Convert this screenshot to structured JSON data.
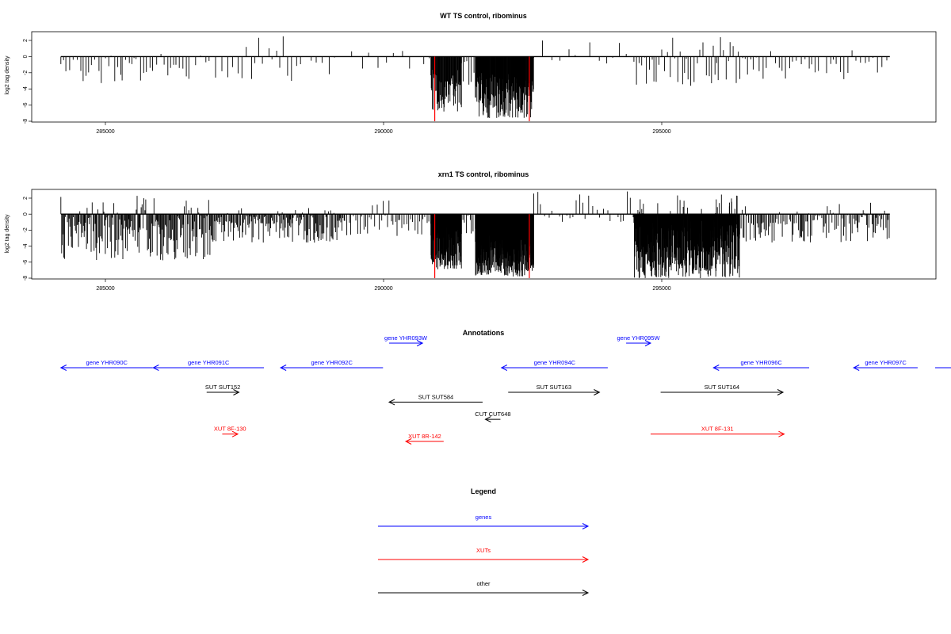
{
  "chart_data": [
    {
      "type": "bar",
      "title": "WT TS control, ribominus",
      "xlabel": "",
      "ylabel": "log2 tag density",
      "xlim": [
        283800,
        297800
      ],
      "ylim": [
        -8.5,
        3.2
      ],
      "xticks": [
        "285000",
        "290000",
        "295000"
      ],
      "yticks": [
        "2",
        "0",
        "-2",
        "-4",
        "-6",
        "-8"
      ],
      "baseline": 0,
      "x_range": [
        284200,
        299100
      ],
      "markers": [
        {
          "x": 290920,
          "value": -8,
          "color": "#ff0000"
        },
        {
          "x": 292620,
          "value": -8,
          "color": "#ff0000"
        }
      ],
      "series": [
        {
          "segments": [
            {
              "from": 284200,
              "to": 285300,
              "step": 55,
              "min": -3.3,
              "max": 0,
              "pos_prob": 0.05,
              "pos_max": 0.5
            },
            {
              "from": 285300,
              "to": 286500,
              "step": 60,
              "min": -3.0,
              "max": 0,
              "pos_prob": 0.08,
              "pos_max": 1.0
            },
            {
              "from": 286500,
              "to": 288700,
              "step": 90,
              "min": -3.2,
              "max": 0,
              "pos_prob": 0.2,
              "pos_max": 2.8
            },
            {
              "from": 288700,
              "to": 290850,
              "step": 140,
              "min": -2.2,
              "max": 0,
              "pos_prob": 0.3,
              "pos_max": 1.4
            },
            {
              "from": 290850,
              "to": 291400,
              "step": 8,
              "min": -6.8,
              "max": -1.5,
              "pos_prob": 0,
              "pos_max": 0
            },
            {
              "from": 291400,
              "to": 291650,
              "step": 40,
              "min": -3.5,
              "max": 0,
              "pos_prob": 0,
              "pos_max": 0
            },
            {
              "from": 291650,
              "to": 292700,
              "step": 6,
              "min": -7.6,
              "max": -2.0,
              "pos_prob": 0,
              "pos_max": 0
            },
            {
              "from": 292700,
              "to": 294500,
              "step": 150,
              "min": -1.2,
              "max": 0,
              "pos_prob": 0.35,
              "pos_max": 2.5
            },
            {
              "from": 294500,
              "to": 296500,
              "step": 45,
              "min": -4.2,
              "max": 0,
              "pos_prob": 0.12,
              "pos_max": 2.6
            },
            {
              "from": 296500,
              "to": 299100,
              "step": 65,
              "min": -2.8,
              "max": 0,
              "pos_prob": 0.1,
              "pos_max": 2.8
            }
          ]
        }
      ]
    },
    {
      "type": "bar",
      "title": "xrn1 TS control, ribominus",
      "xlabel": "",
      "ylabel": "log2 tag density",
      "xlim": [
        283800,
        297800
      ],
      "ylim": [
        -8.5,
        3.2
      ],
      "xticks": [
        "285000",
        "290000",
        "295000"
      ],
      "yticks": [
        "2",
        "0",
        "-2",
        "-4",
        "-6",
        "-8"
      ],
      "baseline": 0,
      "x_range": [
        284200,
        299100
      ],
      "markers": [
        {
          "x": 290920,
          "value": -8,
          "color": "#ff0000"
        },
        {
          "x": 292620,
          "value": -8,
          "color": "#ff0000"
        }
      ],
      "series": [
        {
          "segments": [
            {
              "from": 284200,
              "to": 286900,
              "step": 14,
              "min": -5.8,
              "max": 0,
              "pos_prob": 0.1,
              "pos_max": 2.6
            },
            {
              "from": 286900,
              "to": 289300,
              "step": 16,
              "min": -3.6,
              "max": 0,
              "pos_prob": 0.08,
              "pos_max": 0.8
            },
            {
              "from": 289300,
              "to": 290850,
              "step": 35,
              "min": -2.8,
              "max": 0,
              "pos_prob": 0.12,
              "pos_max": 2.0
            },
            {
              "from": 290850,
              "to": 291400,
              "step": 4,
              "min": -7.0,
              "max": -1.5,
              "pos_prob": 0,
              "pos_max": 0
            },
            {
              "from": 291400,
              "to": 291650,
              "step": 30,
              "min": -2.5,
              "max": 0,
              "pos_prob": 0,
              "pos_max": 0
            },
            {
              "from": 291650,
              "to": 292700,
              "step": 3,
              "min": -7.8,
              "max": -2.0,
              "pos_prob": 0,
              "pos_max": 0
            },
            {
              "from": 292700,
              "to": 294500,
              "step": 60,
              "min": -1.0,
              "max": 0,
              "pos_prob": 0.45,
              "pos_max": 2.9
            },
            {
              "from": 294500,
              "to": 296400,
              "step": 4,
              "min": -8.0,
              "max": -0.5,
              "pos_prob": 0.05,
              "pos_max": 2.5
            },
            {
              "from": 296400,
              "to": 299100,
              "step": 22,
              "min": -3.6,
              "max": 0,
              "pos_prob": 0.1,
              "pos_max": 1.6
            }
          ]
        }
      ]
    }
  ],
  "annotations": {
    "title": "Annotations",
    "items": [
      {
        "label": "gene YHR090C",
        "color": "#0000ff",
        "dir": "left",
        "x1": 284200,
        "x2": 285850,
        "row": 0
      },
      {
        "label": "gene YHR091C",
        "color": "#0000ff",
        "dir": "left",
        "x1": 285860,
        "x2": 287850,
        "row": 0
      },
      {
        "label": "gene YHR092C",
        "color": "#0000ff",
        "dir": "left",
        "x1": 288150,
        "x2": 289990,
        "row": 0
      },
      {
        "label": "gene YHR093W",
        "color": "#0000ff",
        "dir": "right",
        "x1": 290100,
        "x2": 290700,
        "row": -1
      },
      {
        "label": "gene YHR094C",
        "color": "#0000ff",
        "dir": "left",
        "x1": 292120,
        "x2": 294030,
        "row": 0
      },
      {
        "label": "gene YHR095W",
        "color": "#0000ff",
        "dir": "right",
        "x1": 294360,
        "x2": 294800,
        "row": -1
      },
      {
        "label": "gene YHR096C",
        "color": "#0000ff",
        "dir": "left",
        "x1": 295930,
        "x2": 297650,
        "row": 0
      },
      {
        "label": "gene YHR097C",
        "color": "#0000ff",
        "dir": "left",
        "x1": 298450,
        "x2": 299600,
        "row": 0
      },
      {
        "label": "",
        "color": "#0000ff",
        "dir": "left",
        "x1": 300500,
        "x2": 301200,
        "row": 0
      },
      {
        "label": "SUT SUT152",
        "color": "#000000",
        "dir": "right",
        "x1": 286820,
        "x2": 287400,
        "row": 1
      },
      {
        "label": "SUT SUT584",
        "color": "#000000",
        "dir": "left",
        "x1": 290100,
        "x2": 291780,
        "row": 1.4
      },
      {
        "label": "SUT SUT163",
        "color": "#000000",
        "dir": "right",
        "x1": 292240,
        "x2": 293880,
        "row": 1
      },
      {
        "label": "SUT SUT164",
        "color": "#000000",
        "dir": "right",
        "x1": 294980,
        "x2": 297180,
        "row": 1
      },
      {
        "label": "CUT CUT648",
        "color": "#000000",
        "dir": "left",
        "x1": 291830,
        "x2": 292100,
        "row": 2.1
      },
      {
        "label": "XUT 8F-130",
        "color": "#ff0000",
        "dir": "right",
        "x1": 287100,
        "x2": 287380,
        "row": 2.7
      },
      {
        "label": "XUT 8R-142",
        "color": "#ff0000",
        "dir": "left",
        "x1": 290400,
        "x2": 291080,
        "row": 3.0
      },
      {
        "label": "XUT 8F-131",
        "color": "#ff0000",
        "dir": "right",
        "x1": 294800,
        "x2": 297200,
        "row": 2.7
      }
    ]
  },
  "legend": {
    "title": "Legend",
    "items": [
      {
        "label": "genes",
        "color": "#0000ff"
      },
      {
        "label": "XUTs",
        "color": "#ff0000"
      },
      {
        "label": "other",
        "color": "#000000"
      }
    ]
  }
}
